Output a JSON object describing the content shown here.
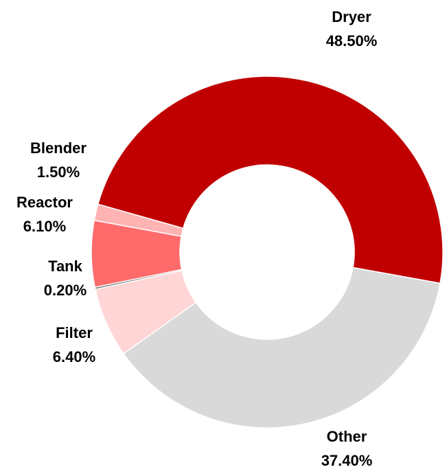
{
  "chart_data": {
    "type": "donut",
    "categories": [
      "Dryer",
      "Other",
      "Filter",
      "Tank",
      "Reactor",
      "Blender"
    ],
    "values": [
      48.5,
      37.4,
      6.4,
      0.2,
      6.1,
      1.5
    ],
    "value_labels": [
      "48.50%",
      "37.40%",
      "6.40%",
      "0.20%",
      "6.10%",
      "1.50%"
    ],
    "colors": [
      "#c00000",
      "#d9d9d9",
      "#ffd5d5",
      "#7f7f7f",
      "#ff6b6b",
      "#ffb3b3"
    ]
  }
}
